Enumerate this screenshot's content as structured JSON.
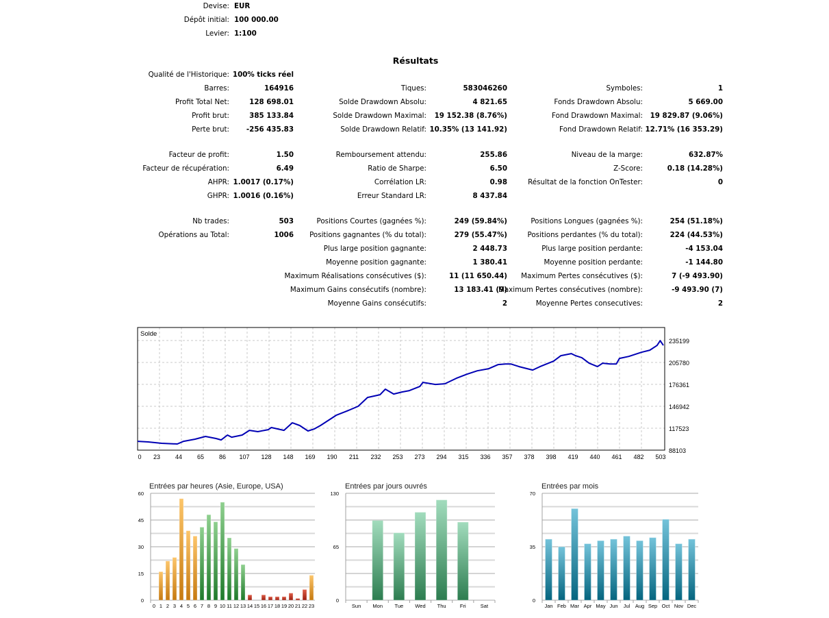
{
  "header": [
    {
      "label": "Devise:",
      "value": "EUR"
    },
    {
      "label": "Dépôt initial:",
      "value": "100 000.00"
    },
    {
      "label": "Levier:",
      "value": "1:100"
    }
  ],
  "results_title": "Résultats",
  "rows": [
    [
      [
        "Qualité de l'Historique:",
        "100% ticks réel"
      ],
      null,
      null
    ],
    [
      [
        "Barres:",
        "164916"
      ],
      [
        "Tiques:",
        "583046260"
      ],
      [
        "Symboles:",
        "1"
      ]
    ],
    [
      [
        "Profit Total Net:",
        "128 698.01"
      ],
      [
        "Solde Drawdown Absolu:",
        "4 821.65"
      ],
      [
        "Fonds Drawdown Absolu:",
        "5 669.00"
      ]
    ],
    [
      [
        "Profit brut:",
        "385 133.84"
      ],
      [
        "Solde Drawdown Maximal:",
        "19 152.38 (8.76%)"
      ],
      [
        "Fond Drawdown Maximal:",
        "19 829.87 (9.06%)"
      ]
    ],
    [
      [
        "Perte brut:",
        "-256 435.83"
      ],
      [
        "Solde Drawdown Relatif:",
        "10.35% (13 141.92)"
      ],
      [
        "Fond Drawdown Relatif:",
        "12.71% (16 353.29)"
      ]
    ],
    [
      [
        "Facteur de profit:",
        "1.50"
      ],
      [
        "Remboursement attendu:",
        "255.86"
      ],
      [
        "Niveau de la marge:",
        "632.87%"
      ]
    ],
    [
      [
        "Facteur de récupération:",
        "6.49"
      ],
      [
        "Ratio de Sharpe:",
        "6.50"
      ],
      [
        "Z-Score:",
        "0.18 (14.28%)"
      ]
    ],
    [
      [
        "AHPR:",
        "1.0017 (0.17%)"
      ],
      [
        "Corrélation LR:",
        "0.98"
      ],
      [
        "Résultat de la fonction OnTester:",
        "0"
      ]
    ],
    [
      [
        "GHPR:",
        "1.0016 (0.16%)"
      ],
      [
        "Erreur Standard LR:",
        "8 437.84"
      ],
      null
    ],
    [
      [
        "Nb trades:",
        "503"
      ],
      [
        "Positions Courtes (gagnées %):",
        "249 (59.84%)"
      ],
      [
        "Positions Longues (gagnées %):",
        "254 (51.18%)"
      ]
    ],
    [
      [
        "Opérations au Total:",
        "1006"
      ],
      [
        "Positions gagnantes (% du total):",
        "279 (55.47%)"
      ],
      [
        "Positions perdantes (% du total):",
        "224 (44.53%)"
      ]
    ],
    [
      null,
      [
        "Plus large position gagnante:",
        "2 448.73"
      ],
      [
        "Plus large position perdante:",
        "-4 153.04"
      ]
    ],
    [
      null,
      [
        "Moyenne position gagnante:",
        "1 380.41"
      ],
      [
        "Moyenne position perdante:",
        "-1 144.80"
      ]
    ],
    [
      null,
      [
        "Maximum Réalisations consécutives ($):",
        "11 (11 650.44)"
      ],
      [
        "Maximum Pertes consécutives ($):",
        "7 (-9 493.90)"
      ]
    ],
    [
      null,
      [
        "Maximum Gains consécutifs (nombre):",
        "13 183.41 (9)"
      ],
      [
        "Maximum Pertes consécutives (nombre):",
        "-9 493.90 (7)"
      ]
    ],
    [
      null,
      [
        "Moyenne Gains consécutifs:",
        "2"
      ],
      [
        "Moyenne Pertes consecutives:",
        "2"
      ]
    ]
  ],
  "chart_data": [
    {
      "type": "line",
      "title": "Solde",
      "line_color": "#0000b4",
      "x_ticks": [
        "0",
        "23",
        "44",
        "65",
        "86",
        "107",
        "128",
        "148",
        "169",
        "190",
        "211",
        "232",
        "253",
        "273",
        "294",
        "315",
        "336",
        "357",
        "378",
        "398",
        "419",
        "440",
        "461",
        "482",
        "503"
      ],
      "y_ticks": [
        "235199",
        "205780",
        "176361",
        "146942",
        "117523",
        "88103"
      ],
      "ylim": [
        88103,
        249908
      ],
      "xlim": [
        0,
        503
      ],
      "x": [
        0,
        10,
        23,
        38,
        44,
        55,
        65,
        75,
        80,
        86,
        90,
        100,
        107,
        115,
        125,
        128,
        140,
        148,
        155,
        163,
        169,
        175,
        190,
        200,
        211,
        220,
        232,
        237,
        245,
        253,
        260,
        270,
        273,
        285,
        294,
        305,
        315,
        325,
        336,
        345,
        352,
        357,
        365,
        378,
        385,
        398,
        405,
        415,
        419,
        425,
        432,
        440,
        445,
        452,
        458,
        461,
        470,
        482,
        490,
        497,
        500,
        503
      ],
      "y": [
        100000,
        99135,
        97300,
        96400,
        100000,
        102800,
        106500,
        103700,
        101800,
        108300,
        105500,
        108300,
        114700,
        112900,
        115600,
        118400,
        114700,
        124800,
        121200,
        113800,
        116500,
        121200,
        134900,
        140400,
        146900,
        158800,
        162500,
        169900,
        163400,
        166200,
        168000,
        173500,
        179000,
        176300,
        177200,
        184500,
        190000,
        194600,
        197400,
        202900,
        203800,
        203800,
        200200,
        195600,
        200200,
        207500,
        214900,
        217600,
        214900,
        212100,
        204800,
        200200,
        204800,
        203800,
        203800,
        211200,
        213900,
        219400,
        222200,
        228600,
        235000,
        228700
      ]
    },
    {
      "type": "bar",
      "title": "Entrées par heures (Asie, Europe, USA)",
      "ylim": [
        0,
        60
      ],
      "y_ticks": [
        "60",
        "45",
        "30",
        "15",
        "0"
      ],
      "categories": [
        "0",
        "1",
        "2",
        "3",
        "4",
        "5",
        "6",
        "7",
        "8",
        "9",
        "10",
        "11",
        "12",
        "13",
        "14",
        "15",
        "16",
        "17",
        "18",
        "19",
        "20",
        "21",
        "22",
        "23"
      ],
      "values": [
        0,
        16,
        22,
        24,
        57,
        39,
        36,
        41,
        48,
        44,
        55,
        35,
        29,
        20,
        3,
        0,
        3,
        2,
        2,
        2,
        4,
        1,
        6,
        14
      ],
      "sessions": [
        "asia",
        "asia",
        "asia",
        "asia",
        "asia",
        "asia",
        "asia",
        "europe",
        "europe",
        "europe",
        "europe",
        "europe",
        "europe",
        "europe",
        "usa",
        "usa",
        "usa",
        "usa",
        "usa",
        "usa",
        "usa",
        "usa",
        "usa",
        "asia"
      ],
      "colors": {
        "asia": [
          "#fcc56a",
          "#c67a10"
        ],
        "europe": [
          "#8fd08f",
          "#1f7a2a"
        ],
        "usa": [
          "#e0604a",
          "#9a1e10"
        ]
      }
    },
    {
      "type": "bar",
      "title": "Entrées par jours ouvrés",
      "ylim": [
        0,
        130
      ],
      "y_ticks": [
        "130",
        "65",
        "0"
      ],
      "categories": [
        "Sun",
        "Mon",
        "Tue",
        "Wed",
        "Thu",
        "Fri",
        "Sat"
      ],
      "values": [
        0,
        97,
        82,
        107,
        122,
        95,
        0
      ],
      "colors": [
        "#a2dcbd",
        "#2d7d50"
      ]
    },
    {
      "type": "bar",
      "title": "Entrées par mois",
      "ylim": [
        0,
        70
      ],
      "y_ticks": [
        "70",
        "35",
        "0"
      ],
      "categories": [
        "Jan",
        "Feb",
        "Mar",
        "Apr",
        "May",
        "Jun",
        "Jul",
        "Aug",
        "Sep",
        "Oct",
        "Nov",
        "Dec"
      ],
      "values": [
        40,
        35,
        60,
        37,
        39,
        40,
        42,
        39,
        41,
        53,
        37,
        40
      ],
      "colors": [
        "#74c3da",
        "#05657f"
      ]
    }
  ]
}
